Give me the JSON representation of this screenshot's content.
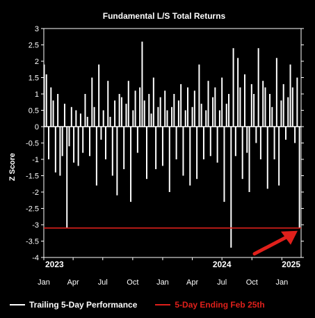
{
  "chart_data": {
    "type": "bar",
    "title": "Fundamental L/S Total Returns",
    "ylabel": "Z Score",
    "xlabel": "",
    "ylim": [
      -4,
      3
    ],
    "yticks": [
      "3",
      "2.5",
      "2",
      "1.5",
      "1",
      "0.5",
      "0",
      "-0.5",
      "-1",
      "-1.5",
      "-2",
      "-2.5",
      "-3",
      "-3.5",
      "-4"
    ],
    "ytick_values": [
      3,
      2.5,
      2,
      1.5,
      1,
      0.5,
      0,
      -0.5,
      -1,
      -1.5,
      -2,
      -2.5,
      -3,
      -3.5,
      -4
    ],
    "xticks": [
      "Jan",
      "Apr",
      "Jul",
      "Oct",
      "Jan",
      "Apr",
      "Jul",
      "Oct",
      "Jan"
    ],
    "xtick_dates": [
      "2023-01-01",
      "2023-04-01",
      "2023-07-01",
      "2023-10-01",
      "2024-01-01",
      "2024-04-01",
      "2024-07-01",
      "2024-10-01",
      "2025-01-01"
    ],
    "year_labels": [
      {
        "label": "2023",
        "date": "2023-01-01"
      },
      {
        "label": "2024",
        "date": "2024-07-01"
      },
      {
        "label": "2025",
        "date": "2025-01-15"
      }
    ],
    "xlim": [
      "2023-01-01",
      "2025-03-01"
    ],
    "grid": false,
    "legend_position": "bottom",
    "reference_line": {
      "name": "5-Day Ending Feb 25th",
      "value": -3.1,
      "color": "#e0201b"
    },
    "series": [
      {
        "name": "Trailing 5-Day Performance",
        "color": "#ffffff",
        "x": [
          "2023-01-02",
          "2023-01-09",
          "2023-01-16",
          "2023-01-23",
          "2023-01-30",
          "2023-02-06",
          "2023-02-13",
          "2023-02-20",
          "2023-02-27",
          "2023-03-06",
          "2023-03-13",
          "2023-03-20",
          "2023-03-27",
          "2023-04-03",
          "2023-04-10",
          "2023-04-17",
          "2023-04-24",
          "2023-05-01",
          "2023-05-08",
          "2023-05-15",
          "2023-05-22",
          "2023-05-29",
          "2023-06-05",
          "2023-06-12",
          "2023-06-19",
          "2023-06-26",
          "2023-07-03",
          "2023-07-10",
          "2023-07-17",
          "2023-07-24",
          "2023-07-31",
          "2023-08-07",
          "2023-08-14",
          "2023-08-21",
          "2023-08-28",
          "2023-09-04",
          "2023-09-11",
          "2023-09-18",
          "2023-09-25",
          "2023-10-02",
          "2023-10-09",
          "2023-10-16",
          "2023-10-23",
          "2023-10-30",
          "2023-11-06",
          "2023-11-13",
          "2023-11-20",
          "2023-11-27",
          "2023-12-04",
          "2023-12-11",
          "2023-12-18",
          "2023-12-25",
          "2024-01-01",
          "2024-01-08",
          "2024-01-15",
          "2024-01-22",
          "2024-01-29",
          "2024-02-05",
          "2024-02-12",
          "2024-02-19",
          "2024-02-26",
          "2024-03-04",
          "2024-03-11",
          "2024-03-18",
          "2024-03-25",
          "2024-04-01",
          "2024-04-08",
          "2024-04-15",
          "2024-04-22",
          "2024-04-29",
          "2024-05-06",
          "2024-05-13",
          "2024-05-20",
          "2024-05-27",
          "2024-06-03",
          "2024-06-10",
          "2024-06-17",
          "2024-06-24",
          "2024-07-01",
          "2024-07-08",
          "2024-07-15",
          "2024-07-22",
          "2024-07-29",
          "2024-08-05",
          "2024-08-12",
          "2024-08-19",
          "2024-08-26",
          "2024-09-02",
          "2024-09-09",
          "2024-09-16",
          "2024-09-23",
          "2024-09-30",
          "2024-10-07",
          "2024-10-14",
          "2024-10-21",
          "2024-10-28",
          "2024-11-04",
          "2024-11-11",
          "2024-11-18",
          "2024-11-25",
          "2024-12-02",
          "2024-12-09",
          "2024-12-16",
          "2024-12-23",
          "2024-12-30",
          "2025-01-06",
          "2025-01-13",
          "2025-01-20",
          "2025-01-27",
          "2025-02-03",
          "2025-02-10",
          "2025-02-17",
          "2025-02-24"
        ],
        "values": [
          1.9,
          1.6,
          -1.0,
          1.2,
          0.8,
          -1.4,
          1.0,
          -1.5,
          -0.9,
          0.7,
          -3.1,
          -0.6,
          0.6,
          -1.1,
          0.5,
          -1.2,
          0.4,
          -0.8,
          1.0,
          0.3,
          -0.9,
          1.5,
          0.6,
          -1.8,
          1.9,
          -0.4,
          0.5,
          -1.0,
          1.4,
          0.3,
          -1.5,
          0.8,
          -2.1,
          1.0,
          0.9,
          -1.3,
          0.7,
          1.4,
          -2.3,
          0.5,
          1.1,
          -0.8,
          1.2,
          2.6,
          0.8,
          -1.6,
          1.0,
          0.4,
          1.5,
          -1.3,
          0.6,
          0.9,
          -1.2,
          1.1,
          0.5,
          -2.0,
          0.6,
          1.0,
          -1.0,
          0.8,
          1.3,
          -1.5,
          0.5,
          1.2,
          -1.8,
          0.6,
          1.1,
          -1.6,
          1.9,
          0.7,
          -1.0,
          0.5,
          1.4,
          -0.9,
          0.9,
          1.2,
          -1.1,
          0.5,
          1.5,
          -2.3,
          0.7,
          1.0,
          -3.7,
          2.4,
          -0.9,
          2.1,
          1.2,
          -1.6,
          1.6,
          -0.8,
          -2.0,
          1.3,
          1.0,
          -0.5,
          2.4,
          -1.0,
          1.4,
          1.2,
          -1.9,
          1.0,
          0.6,
          -1.0,
          2.1,
          -1.8,
          0.8,
          1.3,
          -0.4,
          0.9,
          1.9,
          1.2,
          -0.5,
          1.5,
          -3.1
        ]
      }
    ]
  }
}
